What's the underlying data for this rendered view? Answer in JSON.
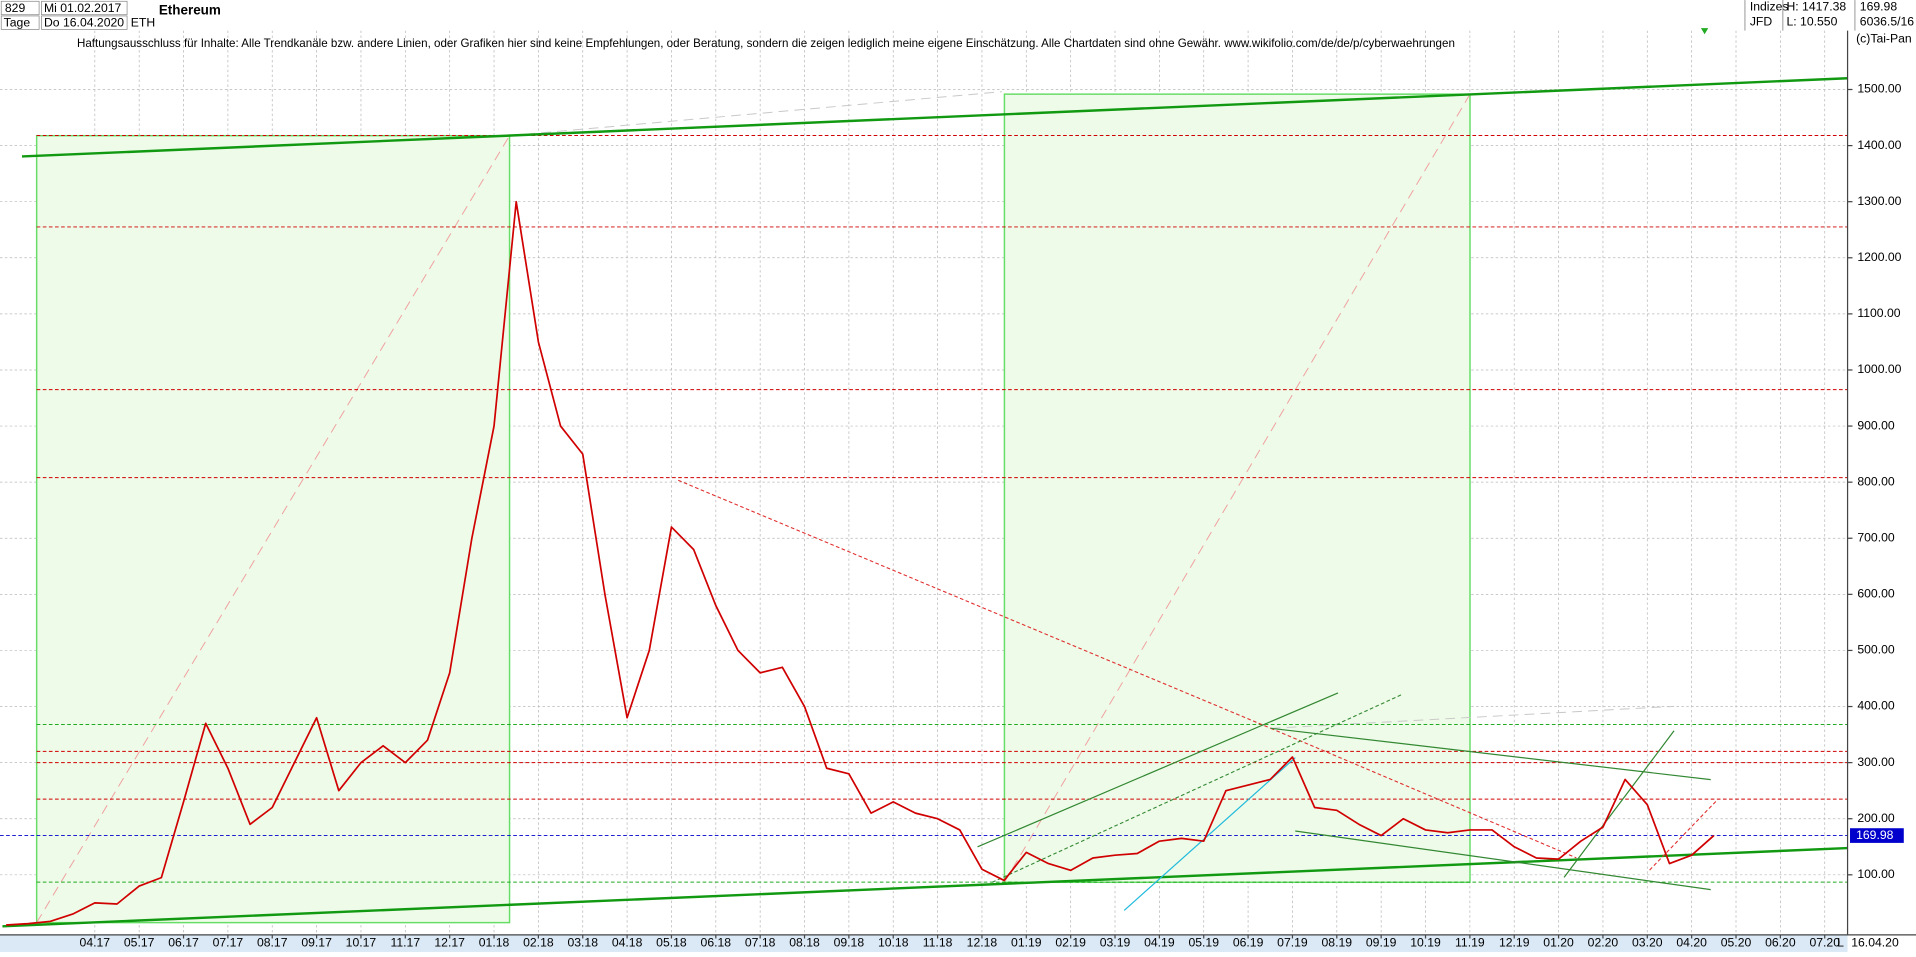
{
  "chart_data": {
    "type": "line",
    "title": "Ethereum",
    "subtitle": "Haftungsausschluss für Inhalte: Alle Trendkanäle bzw. andere Linien, oder Grafiken hier sind keine Empfehlungen, oder Beratung, sondern die zeigen lediglich meine eigene Einschätzung. Alle Chartdaten sind ohne Gewähr.  www.wikifolio.com/de/de/p/cyberwaehrungen",
    "header": {
      "bars_count": 829,
      "start_date": "Mi 01.02.2017",
      "interval": "Tage",
      "end_date": "Do 16.04.2020",
      "symbol": "ETH",
      "market": "Indizes",
      "source": "JFD",
      "high": "H: 1417.38",
      "low": "L: 10.550",
      "scale_info": "6036.5/16",
      "copyright": "(c)Tai-Pan",
      "end_marker": "16.04.20",
      "log_flag": "L"
    },
    "categories": [
      null,
      null,
      null,
      null,
      "04.17",
      null,
      "05.17",
      null,
      "06.17",
      null,
      "07.17",
      null,
      "08.17",
      null,
      "09.17",
      null,
      "10.17",
      null,
      "11.17",
      null,
      "12.17",
      null,
      "01.18",
      null,
      "02.18",
      null,
      "03.18",
      null,
      "04.18",
      null,
      "05.18",
      null,
      "06.18",
      null,
      "07.18",
      null,
      "08.18",
      null,
      "09.18",
      null,
      "10.18",
      null,
      "11.18",
      null,
      "12.18",
      null,
      "01.19",
      null,
      "02.19",
      null,
      "03.19",
      null,
      "04.19",
      null,
      "05.19",
      null,
      "06.19",
      null,
      "07.19",
      null,
      "08.19",
      null,
      "09.19",
      null,
      "10.19",
      null,
      "11.19",
      null,
      "12.19",
      null,
      "01.20",
      null,
      "02.20",
      null,
      "03.20",
      null,
      "04.20",
      null,
      "05.20",
      null,
      "06.20",
      null,
      "07.20"
    ],
    "values": [
      10.5,
      13,
      17,
      30,
      50,
      48,
      80,
      95,
      230,
      370,
      290,
      190,
      220,
      300,
      380,
      250,
      300,
      330,
      300,
      340,
      460,
      700,
      900,
      1300,
      1050,
      900,
      850,
      600,
      380,
      500,
      720,
      680,
      580,
      500,
      460,
      470,
      400,
      290,
      280,
      210,
      230,
      210,
      200,
      180,
      110,
      90,
      140,
      120,
      108,
      130,
      135,
      138,
      160,
      165,
      160,
      250,
      260,
      270,
      310,
      220,
      215,
      190,
      170,
      200,
      180,
      175,
      180,
      180,
      150,
      130,
      128,
      160,
      185,
      270,
      225,
      120,
      135,
      170,
      null,
      null,
      null,
      null,
      null
    ],
    "color": "#d00000",
    "last_price": 169.98,
    "last_price_color": "#0000cc",
    "levels": [
      {
        "value": 1418,
        "color": "#d00000"
      },
      {
        "value": 1255,
        "color": "#d00000"
      },
      {
        "value": 965,
        "color": "#d00000"
      },
      {
        "value": 808,
        "color": "#d00000"
      },
      {
        "value": 368,
        "color": "#22aa22"
      },
      {
        "value": 320,
        "color": "#d00000"
      },
      {
        "value": 300,
        "color": "#d00000"
      },
      {
        "value": 235,
        "color": "#d00000"
      },
      {
        "value": 87,
        "color": "#22aa22"
      }
    ],
    "ylim": [
      -7,
      1605
    ],
    "yticks": [
      {
        "value": 100,
        "label": "100.00"
      },
      {
        "value": 200,
        "label": "200.00"
      },
      {
        "value": 300,
        "label": "300.00"
      },
      {
        "value": 400,
        "label": "400.00"
      },
      {
        "value": 500,
        "label": "500.00"
      },
      {
        "value": 600,
        "label": "600.00"
      },
      {
        "value": 700,
        "label": "700.00"
      },
      {
        "value": 800,
        "label": "800.00"
      },
      {
        "value": 900,
        "label": "900.00"
      },
      {
        "value": 1000,
        "label": "1000.00"
      },
      {
        "value": 1100,
        "label": "1100.00"
      },
      {
        "value": 1200,
        "label": "1200.00"
      },
      {
        "value": 1300,
        "label": "1300.00"
      },
      {
        "value": 1400,
        "label": "1400.00"
      },
      {
        "value": 1500,
        "label": "1500.00"
      }
    ],
    "grid": true
  }
}
